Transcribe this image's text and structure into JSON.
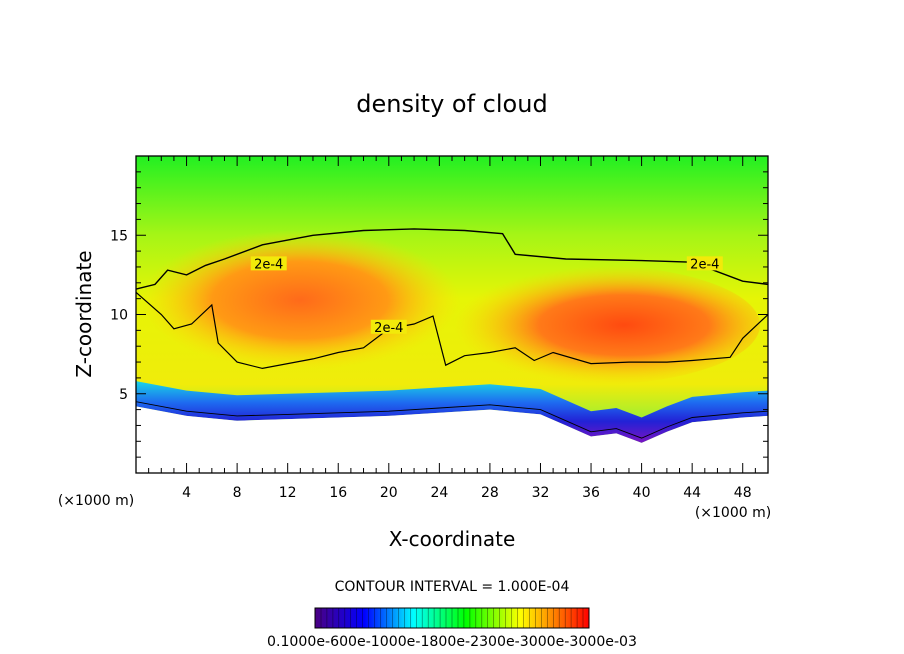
{
  "chart_data": {
    "type": "heatmap",
    "title": "density of cloud",
    "xlabel": "X-coordinate",
    "ylabel": "Z-coordinate",
    "x_unit": "(×1000 m)",
    "z_unit": "(×1000 m)",
    "xlim": [
      0,
      50
    ],
    "ylim": [
      0,
      20
    ],
    "x_ticks": [
      4,
      8,
      12,
      16,
      20,
      24,
      28,
      32,
      36,
      40,
      44,
      48
    ],
    "y_ticks": [
      5,
      10,
      15
    ],
    "contour_interval_text": "CONTOUR INTERVAL = 1.000E-04",
    "contour_label": "2e-4",
    "contour_label_positions": [
      [
        10.5,
        13.1
      ],
      [
        20.0,
        9.1
      ],
      [
        45.0,
        13.1
      ]
    ],
    "colorbar": {
      "min": 0.0001,
      "max": 0.00035,
      "labels_text": "0.1000e-600e-1000e-1800e-2300e-3000e-3000e-03",
      "colormap": [
        "#4b0082",
        "#0000ff",
        "#00ffff",
        "#00ff00",
        "#ffff00",
        "#ff0000"
      ]
    },
    "cloud_base_profile": [
      [
        0,
        4.2
      ],
      [
        4,
        3.6
      ],
      [
        8,
        3.3
      ],
      [
        12,
        3.4
      ],
      [
        16,
        3.5
      ],
      [
        20,
        3.6
      ],
      [
        24,
        3.8
      ],
      [
        28,
        4.0
      ],
      [
        32,
        3.7
      ],
      [
        34,
        3.0
      ],
      [
        36,
        2.3
      ],
      [
        38,
        2.5
      ],
      [
        40,
        1.9
      ],
      [
        42,
        2.6
      ],
      [
        44,
        3.2
      ],
      [
        48,
        3.5
      ],
      [
        50,
        3.6
      ]
    ],
    "contour_2e4": [
      [
        0,
        11.6
      ],
      [
        1.5,
        11.9
      ],
      [
        2.5,
        12.8
      ],
      [
        4,
        12.5
      ],
      [
        5.5,
        13.1
      ],
      [
        7,
        13.5
      ],
      [
        10,
        14.4
      ],
      [
        14,
        15.0
      ],
      [
        18,
        15.3
      ],
      [
        22,
        15.4
      ],
      [
        26,
        15.3
      ],
      [
        29,
        15.1
      ],
      [
        30,
        13.8
      ],
      [
        34,
        13.5
      ],
      [
        40,
        13.4
      ],
      [
        44,
        13.3
      ],
      [
        48,
        12.1
      ],
      [
        50,
        11.9
      ]
    ],
    "contour_2e4_lower": [
      [
        0,
        11.4
      ],
      [
        2,
        10.0
      ],
      [
        3,
        9.1
      ],
      [
        4.4,
        9.4
      ],
      [
        6,
        10.6
      ],
      [
        6.5,
        8.2
      ],
      [
        8,
        7.0
      ],
      [
        10,
        6.6
      ],
      [
        14,
        7.2
      ],
      [
        16,
        7.6
      ],
      [
        18,
        7.9
      ],
      [
        20,
        9.1
      ],
      [
        22,
        9.4
      ],
      [
        23.5,
        9.9
      ],
      [
        24.5,
        6.8
      ],
      [
        26,
        7.4
      ],
      [
        28,
        7.6
      ],
      [
        30,
        7.9
      ],
      [
        31.5,
        7.1
      ],
      [
        33,
        7.6
      ],
      [
        36,
        6.9
      ],
      [
        39,
        7.0
      ],
      [
        42,
        7.0
      ],
      [
        44,
        7.1
      ],
      [
        47,
        7.3
      ],
      [
        48,
        8.5
      ],
      [
        50,
        10.0
      ]
    ]
  }
}
